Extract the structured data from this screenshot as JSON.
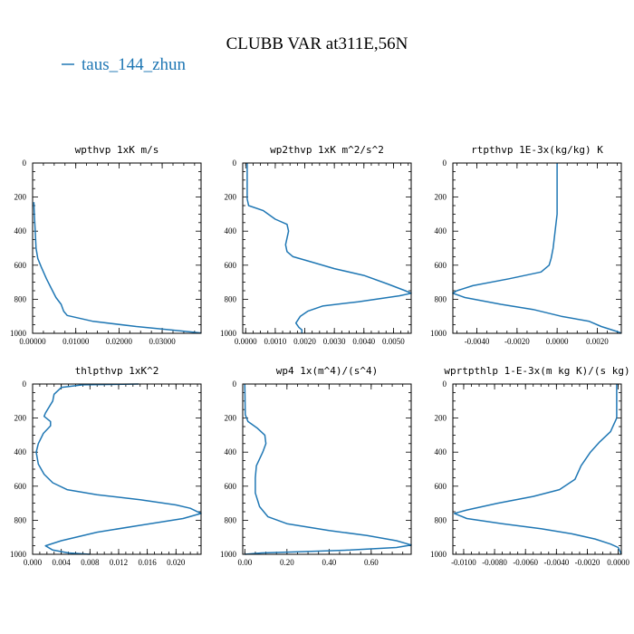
{
  "figure": {
    "title": "CLUBB VAR at311E,56N",
    "legend": {
      "label": "taus_144_zhun",
      "color": "#1f77b4"
    }
  },
  "chart_data": [
    {
      "type": "line",
      "title": "wpthvp   1xK m/s",
      "xlim": [
        0,
        0.039
      ],
      "ylim": [
        1000,
        0
      ],
      "xticks": [
        0,
        0.01,
        0.02,
        0.03
      ],
      "xtick_labels": [
        "0.00000",
        "0.01000",
        "0.02000",
        "0.03000"
      ],
      "yticks": [
        0,
        200,
        400,
        600,
        800,
        1000
      ],
      "ytick_labels": [
        "0",
        "200",
        "400",
        "600",
        "800",
        "1000"
      ],
      "series": [
        {
          "color": "#1f77b4",
          "points": [
            [
              0.0003,
              230
            ],
            [
              0.0004,
              300
            ],
            [
              0.0006,
              400
            ],
            [
              0.0008,
              500
            ],
            [
              0.0012,
              560
            ],
            [
              0.002,
              610
            ],
            [
              0.0032,
              680
            ],
            [
              0.0044,
              740
            ],
            [
              0.0054,
              790
            ],
            [
              0.0066,
              830
            ],
            [
              0.0072,
              870
            ],
            [
              0.008,
              895
            ],
            [
              0.014,
              930
            ],
            [
              0.024,
              960
            ],
            [
              0.032,
              980
            ],
            [
              0.039,
              998
            ]
          ]
        }
      ]
    },
    {
      "type": "line",
      "title": "wp2thvp   1xK m^2/s^2",
      "xlim": [
        -0.0001,
        0.0056
      ],
      "ylim": [
        1000,
        0
      ],
      "xticks": [
        0,
        0.001,
        0.002,
        0.003,
        0.004,
        0.005
      ],
      "xtick_labels": [
        "0.0000",
        "0.0010",
        "0.0020",
        "0.0030",
        "0.0040",
        "0.0050"
      ],
      "yticks": [
        0,
        200,
        400,
        600,
        800,
        1000
      ],
      "ytick_labels": [
        "0",
        "200",
        "400",
        "600",
        "800",
        "1000"
      ],
      "series": [
        {
          "color": "#1f77b4",
          "points": [
            [
              5e-05,
              0
            ],
            [
              5e-05,
              210
            ],
            [
              0.0001,
              250
            ],
            [
              0.0006,
              280
            ],
            [
              0.001,
              330
            ],
            [
              0.0014,
              360
            ],
            [
              0.00145,
              400
            ],
            [
              0.00135,
              480
            ],
            [
              0.0014,
              520
            ],
            [
              0.0016,
              550
            ],
            [
              0.0022,
              580
            ],
            [
              0.003,
              620
            ],
            [
              0.004,
              660
            ],
            [
              0.0048,
              710
            ],
            [
              0.0054,
              750
            ],
            [
              0.0056,
              765
            ],
            [
              0.0052,
              780
            ],
            [
              0.0038,
              815
            ],
            [
              0.0026,
              840
            ],
            [
              0.0021,
              870
            ],
            [
              0.00185,
              900
            ],
            [
              0.0017,
              940
            ],
            [
              0.0018,
              965
            ],
            [
              0.0019,
              980
            ],
            [
              0.0019,
              1000
            ]
          ]
        }
      ]
    },
    {
      "type": "line",
      "title": "rtpthvp   1E-3x(kg/kg) K",
      "xlim": [
        -0.0052,
        0.0032
      ],
      "ylim": [
        1000,
        0
      ],
      "xticks": [
        -0.004,
        -0.002,
        0,
        0.002
      ],
      "xtick_labels": [
        "-0.0040",
        "-0.0020",
        "0.0000",
        "0.0020"
      ],
      "yticks": [
        0,
        200,
        400,
        600,
        800,
        1000
      ],
      "ytick_labels": [
        "0",
        "200",
        "400",
        "600",
        "800",
        "1000"
      ],
      "series": [
        {
          "color": "#1f77b4",
          "points": [
            [
              0.0,
              0
            ],
            [
              0.0,
              300
            ],
            [
              -0.0001,
              400
            ],
            [
              -0.0002,
              500
            ],
            [
              -0.0003,
              560
            ],
            [
              -0.0004,
              600
            ],
            [
              -0.0008,
              640
            ],
            [
              -0.0024,
              680
            ],
            [
              -0.0042,
              720
            ],
            [
              -0.005,
              750
            ],
            [
              -0.0052,
              765
            ],
            [
              -0.0046,
              790
            ],
            [
              -0.0028,
              830
            ],
            [
              -0.0012,
              860
            ],
            [
              0.0002,
              900
            ],
            [
              0.0016,
              930
            ],
            [
              0.0022,
              960
            ],
            [
              0.003,
              990
            ],
            [
              0.0032,
              1000
            ]
          ]
        }
      ]
    },
    {
      "type": "line",
      "title": "thlpthvp   1xK^2",
      "xlim": [
        0,
        0.0235
      ],
      "ylim": [
        1000,
        0
      ],
      "xticks": [
        0,
        0.004,
        0.008,
        0.012,
        0.016,
        0.02
      ],
      "xtick_labels": [
        "0.000",
        "0.004",
        "0.008",
        "0.012",
        "0.016",
        "0.020"
      ],
      "yticks": [
        0,
        200,
        400,
        600,
        800,
        1000
      ],
      "ytick_labels": [
        "0",
        "200",
        "400",
        "600",
        "800",
        "1000"
      ],
      "series": [
        {
          "color": "#1f77b4",
          "points": [
            [
              0.0148,
              0
            ],
            [
              0.007,
              5
            ],
            [
              0.004,
              20
            ],
            [
              0.003,
              60
            ],
            [
              0.0028,
              100
            ],
            [
              0.0018,
              170
            ],
            [
              0.0016,
              190
            ],
            [
              0.0025,
              220
            ],
            [
              0.0025,
              245
            ],
            [
              0.0015,
              290
            ],
            [
              0.0008,
              350
            ],
            [
              0.0005,
              400
            ],
            [
              0.0008,
              470
            ],
            [
              0.0016,
              530
            ],
            [
              0.0028,
              580
            ],
            [
              0.0048,
              620
            ],
            [
              0.009,
              650
            ],
            [
              0.015,
              680
            ],
            [
              0.02,
              710
            ],
            [
              0.022,
              730
            ],
            [
              0.0235,
              760
            ],
            [
              0.021,
              790
            ],
            [
              0.015,
              830
            ],
            [
              0.009,
              870
            ],
            [
              0.004,
              920
            ],
            [
              0.0018,
              950
            ],
            [
              0.0028,
              975
            ],
            [
              0.005,
              992
            ],
            [
              0.008,
              1000
            ]
          ]
        }
      ]
    },
    {
      "type": "line",
      "title": "wp4   1x(m^4)/(s^4)",
      "xlim": [
        -0.01,
        0.79
      ],
      "ylim": [
        1000,
        0
      ],
      "xticks": [
        0,
        0.2,
        0.4,
        0.6
      ],
      "xtick_labels": [
        "0.00",
        "0.20",
        "0.40",
        "0.60"
      ],
      "yticks": [
        0,
        200,
        400,
        600,
        800,
        1000
      ],
      "ytick_labels": [
        "0",
        "200",
        "400",
        "600",
        "800",
        "1000"
      ],
      "series": [
        {
          "color": "#1f77b4",
          "points": [
            [
              0.0,
              0
            ],
            [
              0.002,
              180
            ],
            [
              0.015,
              220
            ],
            [
              0.06,
              260
            ],
            [
              0.095,
              300
            ],
            [
              0.1,
              350
            ],
            [
              0.085,
              400
            ],
            [
              0.055,
              480
            ],
            [
              0.05,
              550
            ],
            [
              0.05,
              640
            ],
            [
              0.07,
              720
            ],
            [
              0.11,
              780
            ],
            [
              0.2,
              820
            ],
            [
              0.4,
              860
            ],
            [
              0.58,
              890
            ],
            [
              0.72,
              920
            ],
            [
              0.79,
              945
            ],
            [
              0.72,
              960
            ],
            [
              0.5,
              975
            ],
            [
              0.25,
              985
            ],
            [
              0.08,
              992
            ],
            [
              0.0,
              1000
            ]
          ]
        }
      ]
    },
    {
      "type": "line",
      "title": "wprtpthlp   1-E-3x(m kg K)/(s kg)",
      "xlim": [
        -0.0107,
        0.0002
      ],
      "ylim": [
        1000,
        0
      ],
      "xticks": [
        -0.01,
        -0.008,
        -0.006,
        -0.004,
        -0.002,
        0
      ],
      "xtick_labels": [
        "-0.0100",
        "-0.0080",
        "-0.0060",
        "-0.0040",
        "-0.0020",
        "0.0000"
      ],
      "yticks": [
        0,
        200,
        400,
        600,
        800,
        1000
      ],
      "ytick_labels": [
        "0",
        "200",
        "400",
        "600",
        "800",
        "1000"
      ],
      "series": [
        {
          "color": "#1f77b4",
          "points": [
            [
              -0.0001,
              0
            ],
            [
              -0.0001,
              200
            ],
            [
              -0.0005,
              280
            ],
            [
              -0.0012,
              340
            ],
            [
              -0.0018,
              400
            ],
            [
              -0.0024,
              480
            ],
            [
              -0.0028,
              560
            ],
            [
              -0.0038,
              620
            ],
            [
              -0.0055,
              660
            ],
            [
              -0.0078,
              700
            ],
            [
              -0.0098,
              740
            ],
            [
              -0.0106,
              760
            ],
            [
              -0.0098,
              790
            ],
            [
              -0.0075,
              820
            ],
            [
              -0.005,
              850
            ],
            [
              -0.003,
              880
            ],
            [
              -0.0015,
              910
            ],
            [
              -0.0005,
              940
            ],
            [
              0.0,
              960
            ],
            [
              0.0002,
              1000
            ]
          ]
        }
      ]
    }
  ]
}
